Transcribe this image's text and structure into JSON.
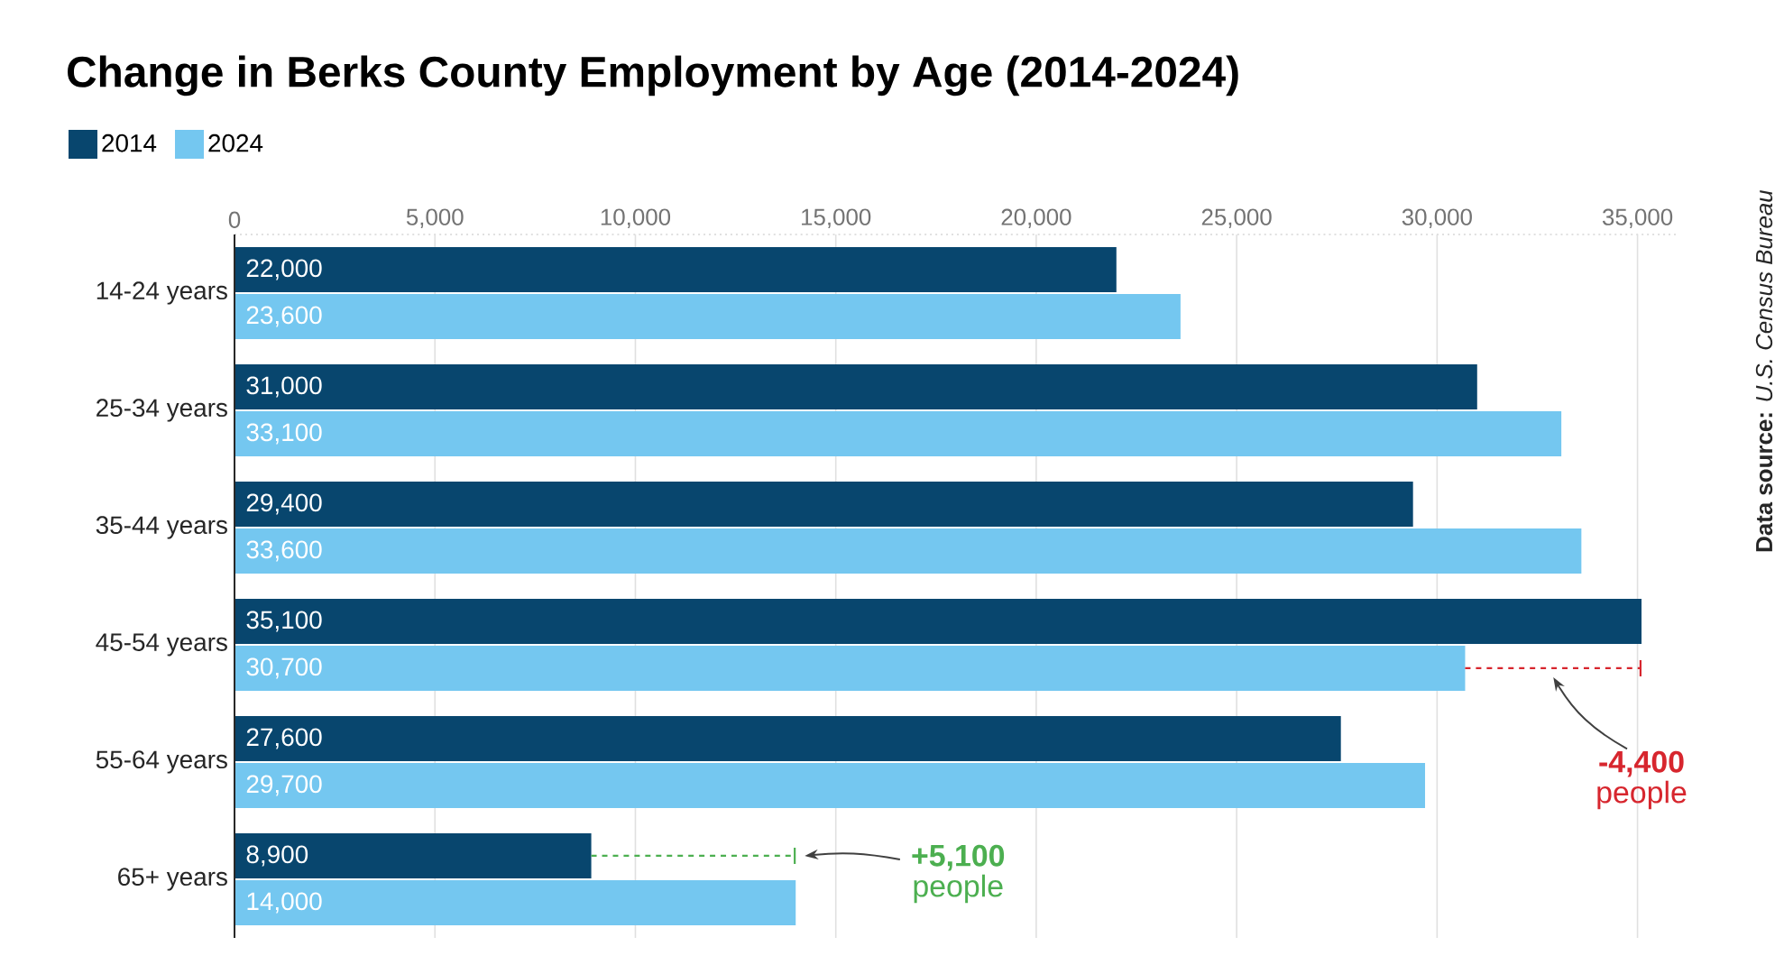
{
  "chart_data": {
    "type": "bar",
    "orientation": "horizontal",
    "title": "Change in Berks County Employment by Age (2014-2024)",
    "categories": [
      "14-24 years",
      "25-34 years",
      "35-44 years",
      "45-54 years",
      "55-64 years",
      "65+ years"
    ],
    "series": [
      {
        "name": "2014",
        "color": "#08466e",
        "values": [
          22000,
          31000,
          29400,
          35100,
          27600,
          8900
        ],
        "value_labels": [
          "22,000",
          "31,000",
          "29,400",
          "35,100",
          "27,600",
          "8,900"
        ],
        "errors": [
          null,
          null,
          null,
          null,
          null,
          [
            8900,
            14000
          ]
        ]
      },
      {
        "name": "2024",
        "color": "#74c7f0",
        "values": [
          23600,
          33100,
          33600,
          30700,
          29700,
          14000
        ],
        "value_labels": [
          "23,600",
          "33,100",
          "33,600",
          "30,700",
          "29,700",
          "14,000"
        ],
        "errors": [
          null,
          null,
          null,
          [
            30700,
            35100
          ],
          null,
          null
        ]
      }
    ],
    "xlim": [
      0,
      36000
    ],
    "xticks": [
      {
        "value": 0,
        "label": "0"
      },
      {
        "value": 5000,
        "label": "5,000"
      },
      {
        "value": 10000,
        "label": "10,000"
      },
      {
        "value": 15000,
        "label": "15,000"
      },
      {
        "value": 20000,
        "label": "20,000"
      },
      {
        "value": 25000,
        "label": "25,000"
      },
      {
        "value": 30000,
        "label": "30,000"
      },
      {
        "value": 35000,
        "label": "35,000"
      }
    ],
    "grid": "x",
    "legend": "top left",
    "annotations": [
      "**+5,100** people",
      "**-4,400** people",
      "**Data source:** *U.S. Census Bureau*"
    ]
  }
}
